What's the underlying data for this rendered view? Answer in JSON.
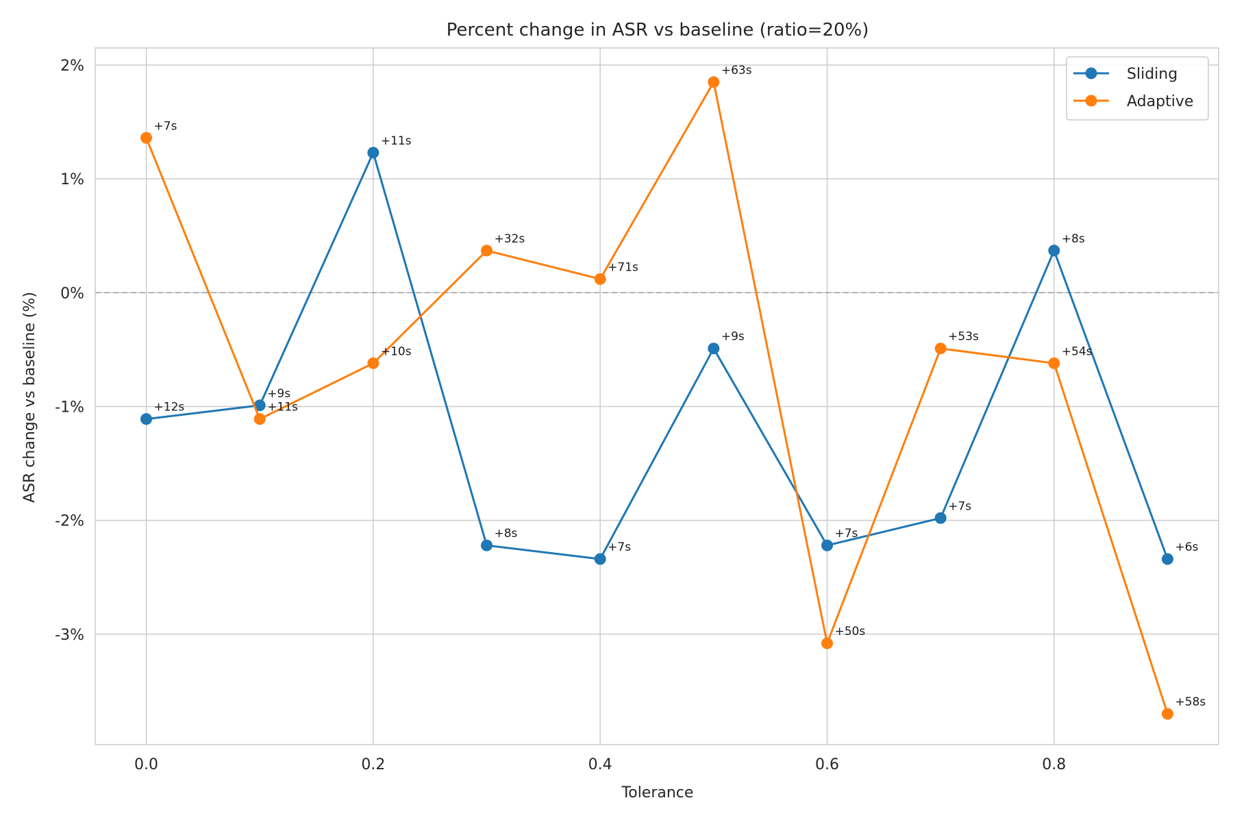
{
  "chart_data": {
    "type": "line",
    "title": "Percent change in ASR vs baseline (ratio=20%)",
    "xlabel": "Tolerance",
    "ylabel": "ASR change vs baseline (%)",
    "xlim": [
      -0.045,
      0.945
    ],
    "ylim": [
      -3.97,
      2.15
    ],
    "xticks": [
      0.0,
      0.2,
      0.4,
      0.6,
      0.8
    ],
    "xtick_labels": [
      "0.0",
      "0.2",
      "0.4",
      "0.6",
      "0.8"
    ],
    "yticks": [
      2,
      1,
      0,
      -1,
      -2,
      -3
    ],
    "ytick_labels": [
      "2%",
      "1%",
      "0%",
      "-1%",
      "-2%",
      "-3%"
    ],
    "grid": true,
    "reference_line": {
      "y": 0,
      "style": "dashed",
      "color": "#999999"
    },
    "legend_position": "top-right",
    "x": [
      0.0,
      0.1,
      0.2,
      0.3,
      0.4,
      0.5,
      0.6,
      0.7,
      0.8,
      0.9
    ],
    "series": [
      {
        "name": "Sliding",
        "color": "#1f77b4",
        "values": [
          -1.11,
          -0.99,
          1.23,
          -2.22,
          -2.34,
          -0.49,
          -2.22,
          -1.98,
          0.37,
          -2.34
        ],
        "point_labels": [
          "+12s",
          "+9s",
          "+11s",
          "+8s",
          "+7s",
          "+9s",
          "+7s",
          "+7s",
          "+8s",
          "+6s"
        ]
      },
      {
        "name": "Adaptive",
        "color": "#ff7f0e",
        "values": [
          1.36,
          -1.11,
          -0.62,
          0.37,
          0.12,
          1.85,
          -3.08,
          -0.49,
          -0.62,
          -3.7
        ],
        "point_labels": [
          "+7s",
          "+11s",
          "+10s",
          "+32s",
          "+71s",
          "+63s",
          "+50s",
          "+53s",
          "+54s",
          "+58s"
        ]
      }
    ]
  }
}
